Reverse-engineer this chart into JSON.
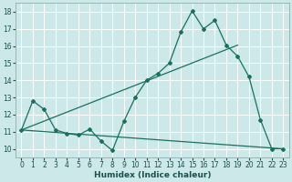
{
  "xlabel": "Humidex (Indice chaleur)",
  "bg_color": "#cce8e8",
  "grid_color": "#ffffff",
  "line_color": "#1a7060",
  "xlim": [
    -0.5,
    23.5
  ],
  "ylim": [
    9.5,
    18.5
  ],
  "xticks": [
    0,
    1,
    2,
    3,
    4,
    5,
    6,
    7,
    8,
    9,
    10,
    11,
    12,
    13,
    14,
    15,
    16,
    17,
    18,
    19,
    20,
    21,
    22,
    23
  ],
  "yticks": [
    10,
    11,
    12,
    13,
    14,
    15,
    16,
    17,
    18
  ],
  "zigzag_x": [
    0,
    1,
    2,
    3,
    4,
    5,
    6,
    7,
    8,
    9,
    10,
    11,
    12,
    13,
    14,
    15,
    16,
    17,
    18,
    19,
    20,
    21,
    22,
    23
  ],
  "zigzag_y": [
    11.1,
    12.8,
    12.3,
    11.1,
    10.9,
    10.8,
    11.15,
    10.45,
    9.9,
    11.6,
    13.0,
    14.0,
    14.4,
    15.0,
    16.8,
    18.05,
    17.0,
    17.5,
    16.05,
    15.4,
    14.2,
    11.7,
    10.0,
    10.0
  ],
  "upper_line_x": [
    0,
    19
  ],
  "upper_line_y": [
    11.1,
    16.05
  ],
  "lower_line_x": [
    0,
    23
  ],
  "lower_line_y": [
    11.1,
    10.0
  ],
  "marker_size": 2.0,
  "line_width": 0.9,
  "xlabel_fontsize": 6.5,
  "tick_fontsize": 5.5
}
